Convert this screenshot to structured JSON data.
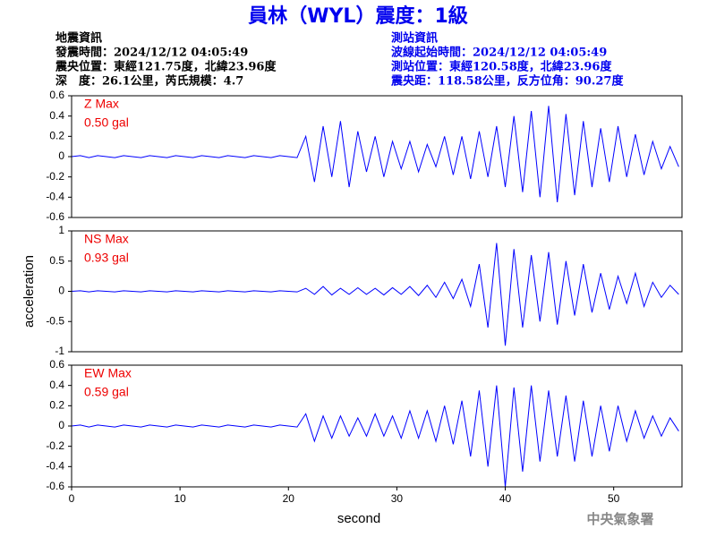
{
  "header": {
    "title": "員林（WYL）震度：1級",
    "left_lines": [
      "地震資訊",
      "發震時間：2024/12/12 04:05:49",
      "震央位置：東經121.75度，北緯23.96度",
      "深　度：26.1公里，芮氏規模：4.7"
    ],
    "right_lines": [
      "測站資訊",
      "波線起始時間：2024/12/12 04:05:49",
      "測站位置：東經120.58度，北緯23.96度",
      "震央距：118.58公里，反方位角：90.27度"
    ],
    "footer": "中央氣象署"
  },
  "chart_data": [
    {
      "type": "line",
      "label": "Z Max",
      "max_label": "0.50 gal",
      "color": "#0000ff",
      "annotation_color": "#ee0000",
      "xlim": [
        0,
        56.3
      ],
      "ylim": [
        -0.6,
        0.6
      ],
      "yticks": [
        0.6,
        0.4,
        0.2,
        0,
        -0.2,
        -0.4,
        -0.6
      ],
      "x": [
        0,
        0.8,
        1.6,
        2.4,
        3.2,
        4,
        4.8,
        5.6,
        6.4,
        7.2,
        8,
        8.8,
        9.6,
        10.4,
        11.2,
        12,
        12.8,
        13.6,
        14.4,
        15.2,
        16,
        16.8,
        17.6,
        18.4,
        19.2,
        20,
        20.8,
        21.6,
        22.4,
        23.2,
        24,
        24.8,
        25.6,
        26.4,
        27.2,
        28,
        28.8,
        29.6,
        30.4,
        31.2,
        32,
        32.8,
        33.6,
        34.4,
        35.2,
        36,
        36.8,
        37.6,
        38.4,
        39.2,
        40,
        40.8,
        41.6,
        42.4,
        43.2,
        44,
        44.8,
        45.6,
        46.4,
        47.2,
        48,
        48.8,
        49.6,
        50.4,
        51.2,
        52,
        52.8,
        53.6,
        54.4,
        55.2,
        56
      ],
      "values": [
        0,
        0.01,
        -0.01,
        0.01,
        0,
        -0.01,
        0.01,
        0,
        -0.01,
        0.01,
        0,
        -0.01,
        0.01,
        0,
        -0.01,
        0.01,
        0,
        -0.01,
        0.01,
        0,
        -0.01,
        0.01,
        0,
        -0.01,
        0.01,
        0,
        -0.01,
        0.2,
        -0.25,
        0.3,
        -0.2,
        0.35,
        -0.3,
        0.25,
        -0.15,
        0.2,
        -0.2,
        0.15,
        -0.12,
        0.15,
        -0.15,
        0.12,
        -0.1,
        0.2,
        -0.18,
        0.2,
        -0.22,
        0.25,
        -0.2,
        0.3,
        -0.3,
        0.4,
        -0.35,
        0.45,
        -0.4,
        0.5,
        -0.45,
        0.42,
        -0.38,
        0.35,
        -0.3,
        0.28,
        -0.25,
        0.3,
        -0.2,
        0.22,
        -0.18,
        0.15,
        -0.12,
        0.1,
        -0.1
      ]
    },
    {
      "type": "line",
      "label": "NS Max",
      "max_label": "0.93 gal",
      "color": "#0000ff",
      "annotation_color": "#ee0000",
      "ylabel": "acceleration",
      "xlim": [
        0,
        56.3
      ],
      "ylim": [
        -1,
        1
      ],
      "yticks": [
        1,
        0.5,
        0,
        -0.5,
        -1
      ],
      "x": [
        0,
        0.8,
        1.6,
        2.4,
        3.2,
        4,
        4.8,
        5.6,
        6.4,
        7.2,
        8,
        8.8,
        9.6,
        10.4,
        11.2,
        12,
        12.8,
        13.6,
        14.4,
        15.2,
        16,
        16.8,
        17.6,
        18.4,
        19.2,
        20,
        20.8,
        21.6,
        22.4,
        23.2,
        24,
        24.8,
        25.6,
        26.4,
        27.2,
        28,
        28.8,
        29.6,
        30.4,
        31.2,
        32,
        32.8,
        33.6,
        34.4,
        35.2,
        36,
        36.8,
        37.6,
        38.4,
        39.2,
        40,
        40.8,
        41.6,
        42.4,
        43.2,
        44,
        44.8,
        45.6,
        46.4,
        47.2,
        48,
        48.8,
        49.6,
        50.4,
        51.2,
        52,
        52.8,
        53.6,
        54.4,
        55.2,
        56
      ],
      "values": [
        0,
        0.01,
        -0.01,
        0.01,
        0,
        -0.01,
        0.01,
        0,
        -0.01,
        0.01,
        0,
        -0.01,
        0.01,
        0,
        -0.01,
        0.01,
        0,
        -0.01,
        0.01,
        0,
        -0.01,
        0.01,
        0,
        -0.01,
        0.01,
        0,
        -0.01,
        0.05,
        -0.05,
        0.08,
        -0.06,
        0.05,
        -0.05,
        0.06,
        -0.05,
        0.05,
        -0.06,
        0.06,
        -0.05,
        0.08,
        -0.07,
        0.1,
        -0.1,
        0.15,
        -0.12,
        0.2,
        -0.25,
        0.45,
        -0.6,
        0.8,
        -0.9,
        0.7,
        -0.6,
        0.6,
        -0.5,
        0.65,
        -0.55,
        0.5,
        -0.4,
        0.45,
        -0.35,
        0.3,
        -0.3,
        0.25,
        -0.2,
        0.3,
        -0.25,
        0.15,
        -0.1,
        0.1,
        -0.05
      ]
    },
    {
      "type": "line",
      "label": "EW Max",
      "max_label": "0.59 gal",
      "color": "#0000ff",
      "annotation_color": "#ee0000",
      "xlabel": "second",
      "xlim": [
        0,
        56.3
      ],
      "ylim": [
        -0.6,
        0.6
      ],
      "yticks": [
        0.6,
        0.4,
        0.2,
        0,
        -0.2,
        -0.4,
        -0.6
      ],
      "xticks": [
        0,
        10,
        20,
        30,
        40,
        50
      ],
      "x": [
        0,
        0.8,
        1.6,
        2.4,
        3.2,
        4,
        4.8,
        5.6,
        6.4,
        7.2,
        8,
        8.8,
        9.6,
        10.4,
        11.2,
        12,
        12.8,
        13.6,
        14.4,
        15.2,
        16,
        16.8,
        17.6,
        18.4,
        19.2,
        20,
        20.8,
        21.6,
        22.4,
        23.2,
        24,
        24.8,
        25.6,
        26.4,
        27.2,
        28,
        28.8,
        29.6,
        30.4,
        31.2,
        32,
        32.8,
        33.6,
        34.4,
        35.2,
        36,
        36.8,
        37.6,
        38.4,
        39.2,
        40,
        40.8,
        41.6,
        42.4,
        43.2,
        44,
        44.8,
        45.6,
        46.4,
        47.2,
        48,
        48.8,
        49.6,
        50.4,
        51.2,
        52,
        52.8,
        53.6,
        54.4,
        55.2,
        56
      ],
      "values": [
        0,
        0.01,
        -0.01,
        0.01,
        0,
        -0.01,
        0.01,
        0,
        -0.01,
        0.01,
        0,
        -0.01,
        0.01,
        0,
        -0.01,
        0.01,
        0,
        -0.01,
        0.01,
        0,
        -0.01,
        0.01,
        0,
        -0.01,
        0.01,
        0,
        -0.01,
        0.12,
        -0.15,
        0.1,
        -0.12,
        0.1,
        -0.1,
        0.08,
        -0.1,
        0.12,
        -0.1,
        0.1,
        -0.12,
        0.15,
        -0.12,
        0.15,
        -0.15,
        0.2,
        -0.18,
        0.25,
        -0.3,
        0.35,
        -0.4,
        0.4,
        -0.6,
        0.38,
        -0.45,
        0.4,
        -0.35,
        0.35,
        -0.3,
        0.3,
        -0.35,
        0.25,
        -0.3,
        0.2,
        -0.25,
        0.2,
        -0.15,
        0.15,
        -0.12,
        0.1,
        -0.1,
        0.08,
        -0.05
      ]
    }
  ]
}
